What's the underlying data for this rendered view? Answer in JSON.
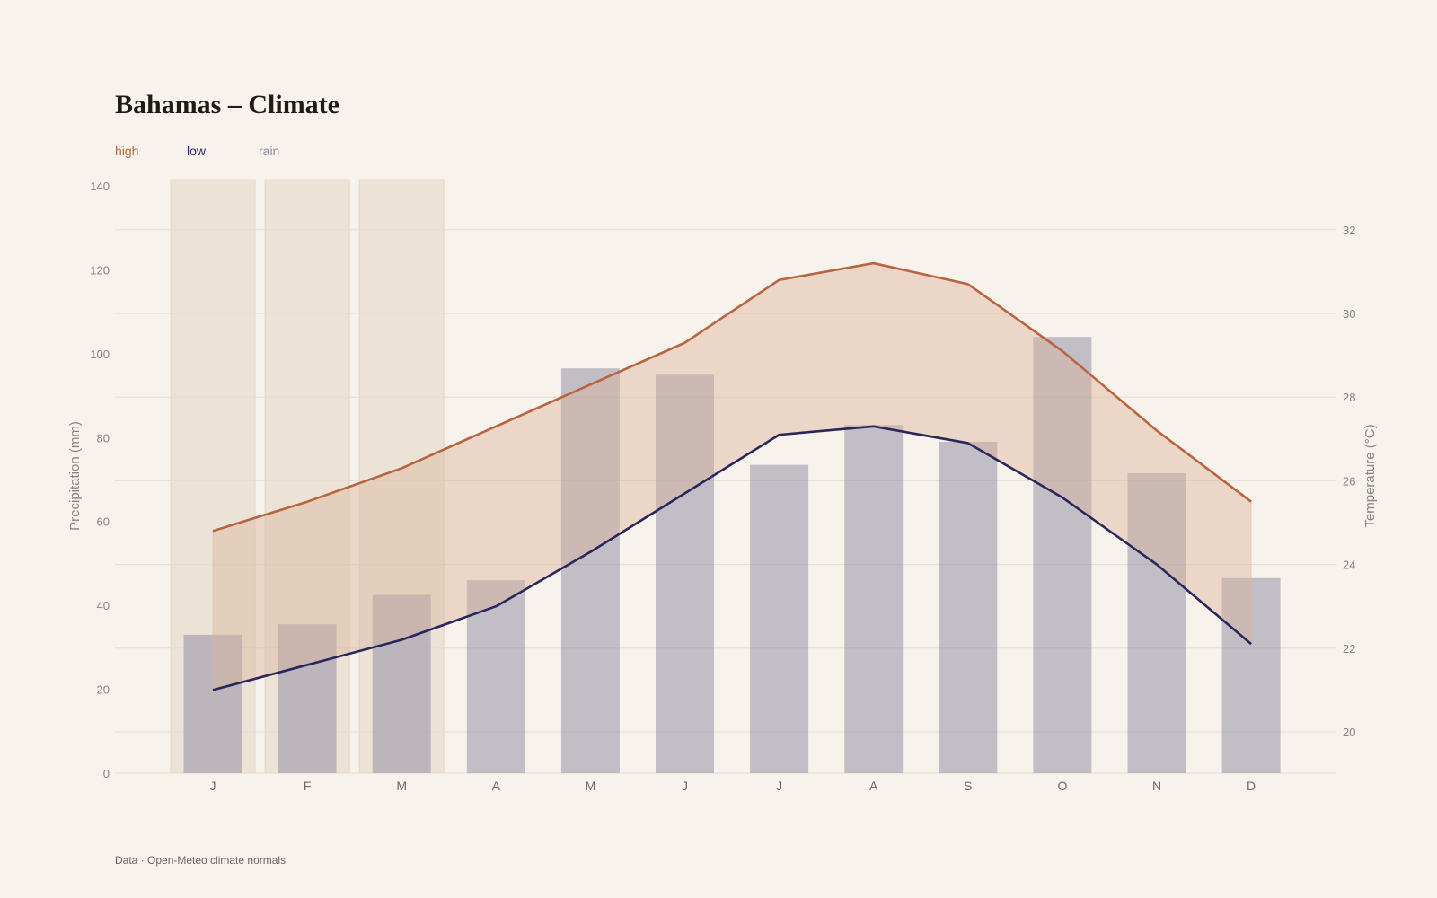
{
  "chart_data": {
    "type": "bar",
    "title": "Bahamas – Climate",
    "categories": [
      "J",
      "F",
      "M",
      "A",
      "M",
      "J",
      "J",
      "A",
      "S",
      "O",
      "N",
      "D"
    ],
    "highlighted_categories": [
      0,
      1,
      2
    ],
    "series": [
      {
        "name": "high",
        "type": "line",
        "axis": "right",
        "unit": "°C",
        "color": "#b86440",
        "values": [
          24.8,
          25.5,
          26.3,
          27.3,
          28.3,
          29.3,
          30.8,
          31.2,
          30.7,
          29.1,
          27.2,
          25.5
        ]
      },
      {
        "name": "low",
        "type": "line",
        "axis": "right",
        "unit": "°C",
        "color": "#29275b",
        "values": [
          21.0,
          21.6,
          22.2,
          23.0,
          24.3,
          25.7,
          27.1,
          27.3,
          26.9,
          25.6,
          24.0,
          22.1
        ]
      },
      {
        "name": "rain",
        "type": "bar",
        "axis": "left",
        "unit": "mm",
        "color": "#8c8aa2",
        "values": [
          33,
          35.5,
          42.5,
          46,
          96.5,
          95,
          73.5,
          83,
          79,
          104,
          71.5,
          46.5
        ]
      }
    ],
    "shaded_range": "between high and low",
    "ylabel": "Precipitation (mm)",
    "ylim": [
      0,
      140
    ],
    "yticks": [
      0,
      20,
      40,
      60,
      80,
      100,
      120,
      140
    ],
    "y2label": "Temperature (°C)",
    "y2lim": [
      19,
      33.2
    ],
    "y2ticks": [
      20,
      22,
      24,
      26,
      28,
      30,
      32
    ],
    "grid": true,
    "legend_position": "top-left"
  },
  "legend": {
    "high": "high",
    "low": "low",
    "rain": "rain"
  },
  "colors": {
    "background": "#f7f2eb",
    "highlight": "#ece3d6",
    "band": "#dcb49d"
  },
  "footer": "Data · Open-Meteo climate normals"
}
